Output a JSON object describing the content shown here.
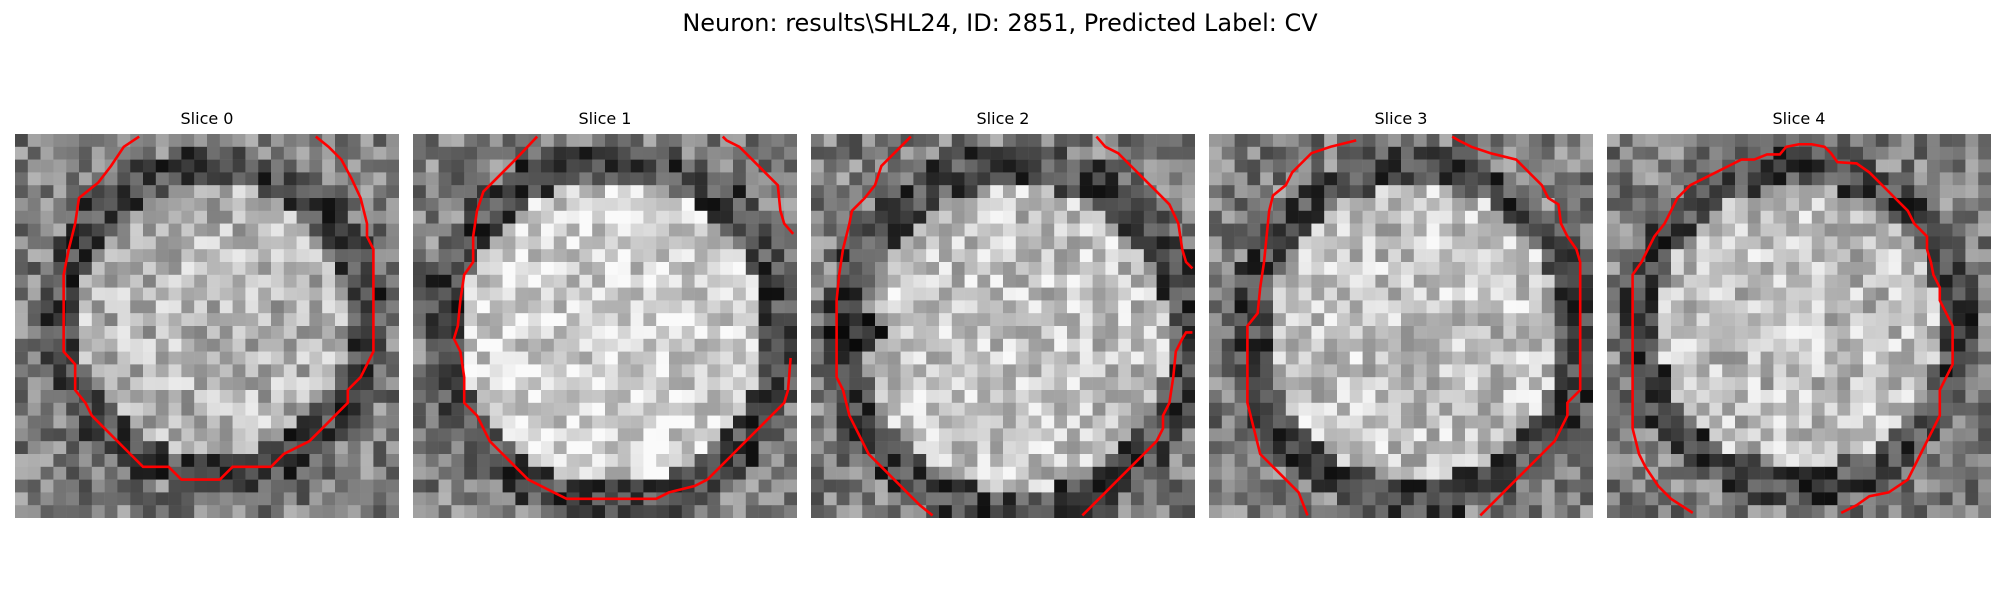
{
  "title": "Neuron: results\\SHL24, ID: 2851, Predicted Label: CV",
  "colors": {
    "contour": "#ff0000"
  },
  "panels": [
    {
      "title": "Slice 0"
    },
    {
      "title": "Slice 1"
    },
    {
      "title": "Slice 2"
    },
    {
      "title": "Slice 3"
    },
    {
      "title": "Slice 4"
    }
  ]
}
